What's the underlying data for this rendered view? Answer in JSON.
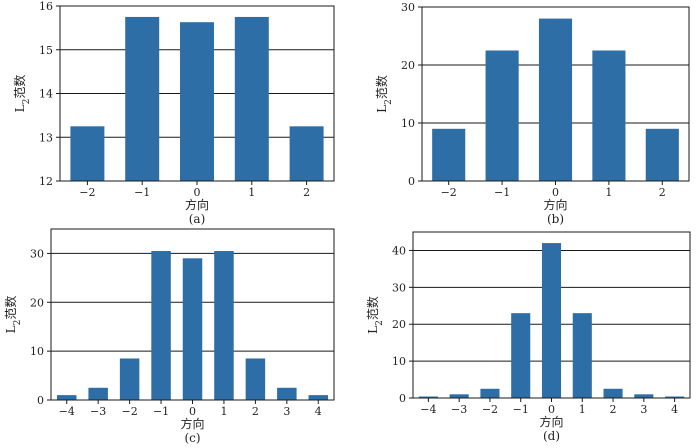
{
  "chart_data": [
    {
      "type": "bar",
      "panel_label": "(a)",
      "xlabel": "方向",
      "ylabel_main": "L",
      "ylabel_sub": "2",
      "ylabel_rest": "范数",
      "categories": [
        "−2",
        "−1",
        "0",
        "1",
        "2"
      ],
      "values": [
        13.25,
        15.75,
        15.63,
        15.75,
        13.25
      ],
      "ylim": [
        12,
        16
      ],
      "yticks": [
        12,
        13,
        14,
        15,
        16
      ],
      "grid": true,
      "color": "#2e6ea6"
    },
    {
      "type": "bar",
      "panel_label": "(b)",
      "xlabel": "方向",
      "ylabel_main": "L",
      "ylabel_sub": "2",
      "ylabel_rest": "范数",
      "categories": [
        "−2",
        "−1",
        "0",
        "1",
        "2"
      ],
      "values": [
        9.0,
        22.5,
        28.0,
        22.5,
        9.0
      ],
      "ylim": [
        0,
        30
      ],
      "yticks": [
        0,
        10,
        20,
        30
      ],
      "grid": true,
      "color": "#2e6ea6"
    },
    {
      "type": "bar",
      "panel_label": "(c)",
      "xlabel": "方向",
      "ylabel_main": "L",
      "ylabel_sub": "2",
      "ylabel_rest": "范数",
      "categories": [
        "−4",
        "−3",
        "−2",
        "−1",
        "0",
        "1",
        "2",
        "3",
        "4"
      ],
      "values": [
        1.0,
        2.5,
        8.5,
        30.5,
        29.0,
        30.5,
        8.5,
        2.5,
        1.0
      ],
      "ylim": [
        0,
        35
      ],
      "yticks": [
        0,
        10,
        20,
        30
      ],
      "grid": true,
      "color": "#2e6ea6"
    },
    {
      "type": "bar",
      "panel_label": "(d)",
      "xlabel": "方向",
      "ylabel_main": "L",
      "ylabel_sub": "2",
      "ylabel_rest": "范数",
      "categories": [
        "−4",
        "−3",
        "−2",
        "−1",
        "0",
        "1",
        "2",
        "3",
        "4"
      ],
      "values": [
        0.4,
        1.0,
        2.5,
        23.0,
        42.0,
        23.0,
        2.5,
        1.0,
        0.4
      ],
      "ylim": [
        0,
        45
      ],
      "yticks": [
        0,
        10,
        20,
        30,
        40
      ],
      "grid": true,
      "color": "#2e6ea6"
    }
  ]
}
